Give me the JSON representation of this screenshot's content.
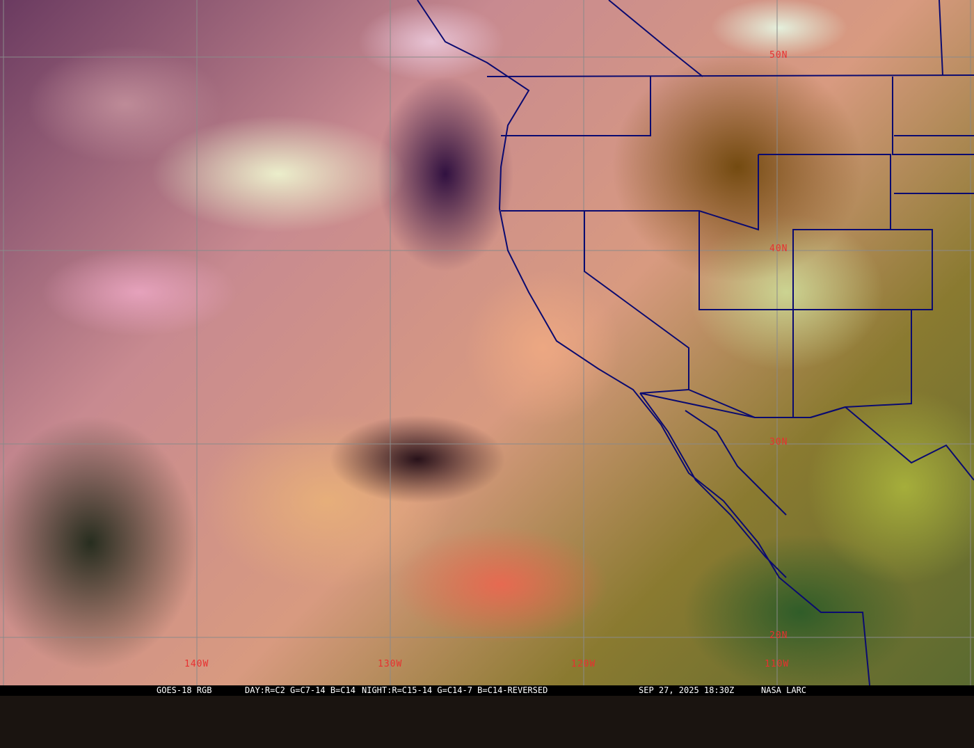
{
  "image": {
    "type": "satellite-rgb-composite",
    "colors": {
      "grid": "#8a8a8a",
      "boundaries": "#0a0a70",
      "labels": "#e83030",
      "caption_bg": "#000000",
      "caption_text": "#ffffff"
    }
  },
  "grid_labels": {
    "lat": [
      "50N",
      "40N",
      "30N",
      "20N"
    ],
    "lon": [
      "140W",
      "130W",
      "120W",
      "110W"
    ]
  },
  "caption": {
    "satellite": "GOES-18 RGB",
    "day": "DAY:R=C2 G=C7-14 B=C14",
    "night": "NIGHT:R=C15-14 G=C14-7 B=C14-REVERSED",
    "datetime": "SEP 27, 2025 18:30Z",
    "source": "NASA LARC"
  }
}
